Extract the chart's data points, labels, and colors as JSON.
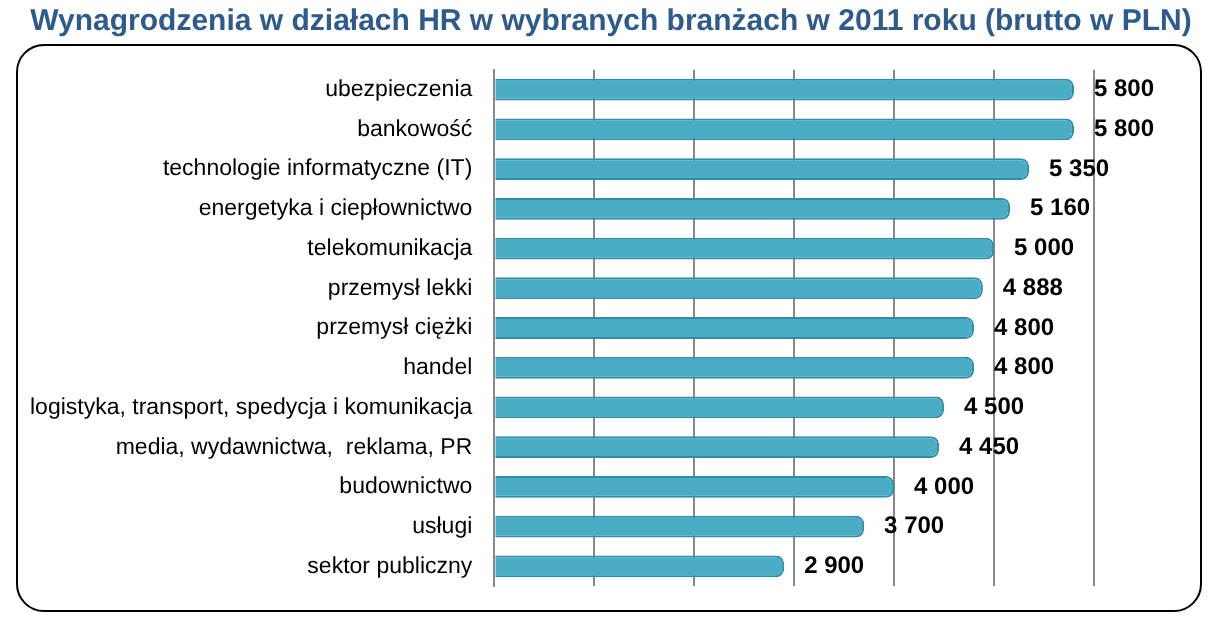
{
  "chart_data": {
    "type": "bar",
    "orientation": "horizontal",
    "title": "Wynagrodzenia w działach HR w wybranych branżach w 2011 roku (brutto w PLN)",
    "categories": [
      "ubezpieczenia",
      "bankowość",
      "technologie informatyczne (IT)",
      "energetyka i ciepłownictwo",
      "telekomunikacja",
      "przemysł lekki",
      "przemysł ciężki",
      "handel",
      "logistyka, transport, spedycja i komunikacja",
      "media, wydawnictwa,  reklama, PR",
      "budownictwo",
      "usługi",
      "sektor publiczny"
    ],
    "values": [
      5800,
      5800,
      5350,
      5160,
      5000,
      4888,
      4800,
      4800,
      4500,
      4450,
      4000,
      3700,
      2900
    ],
    "value_labels": [
      "5 800",
      "5 800",
      "5 350",
      "5 160",
      "5 000",
      "4 888",
      "4 800",
      "4 800",
      "4 500",
      "4 450",
      "4 000",
      "3 700",
      "2 900"
    ],
    "color": "#4bacc6",
    "xlim": [
      0,
      6000
    ],
    "xticks": [
      {
        "value": 0,
        "label": null
      },
      {
        "value": 1000,
        "label": null
      },
      {
        "value": 2000,
        "label": null
      },
      {
        "value": 3000,
        "label": null
      },
      {
        "value": 4000,
        "label": null
      },
      {
        "value": 5000,
        "label": null
      },
      {
        "value": 6000,
        "label": null
      }
    ],
    "grid": "x",
    "tick_labels": "y",
    "legend": false
  }
}
